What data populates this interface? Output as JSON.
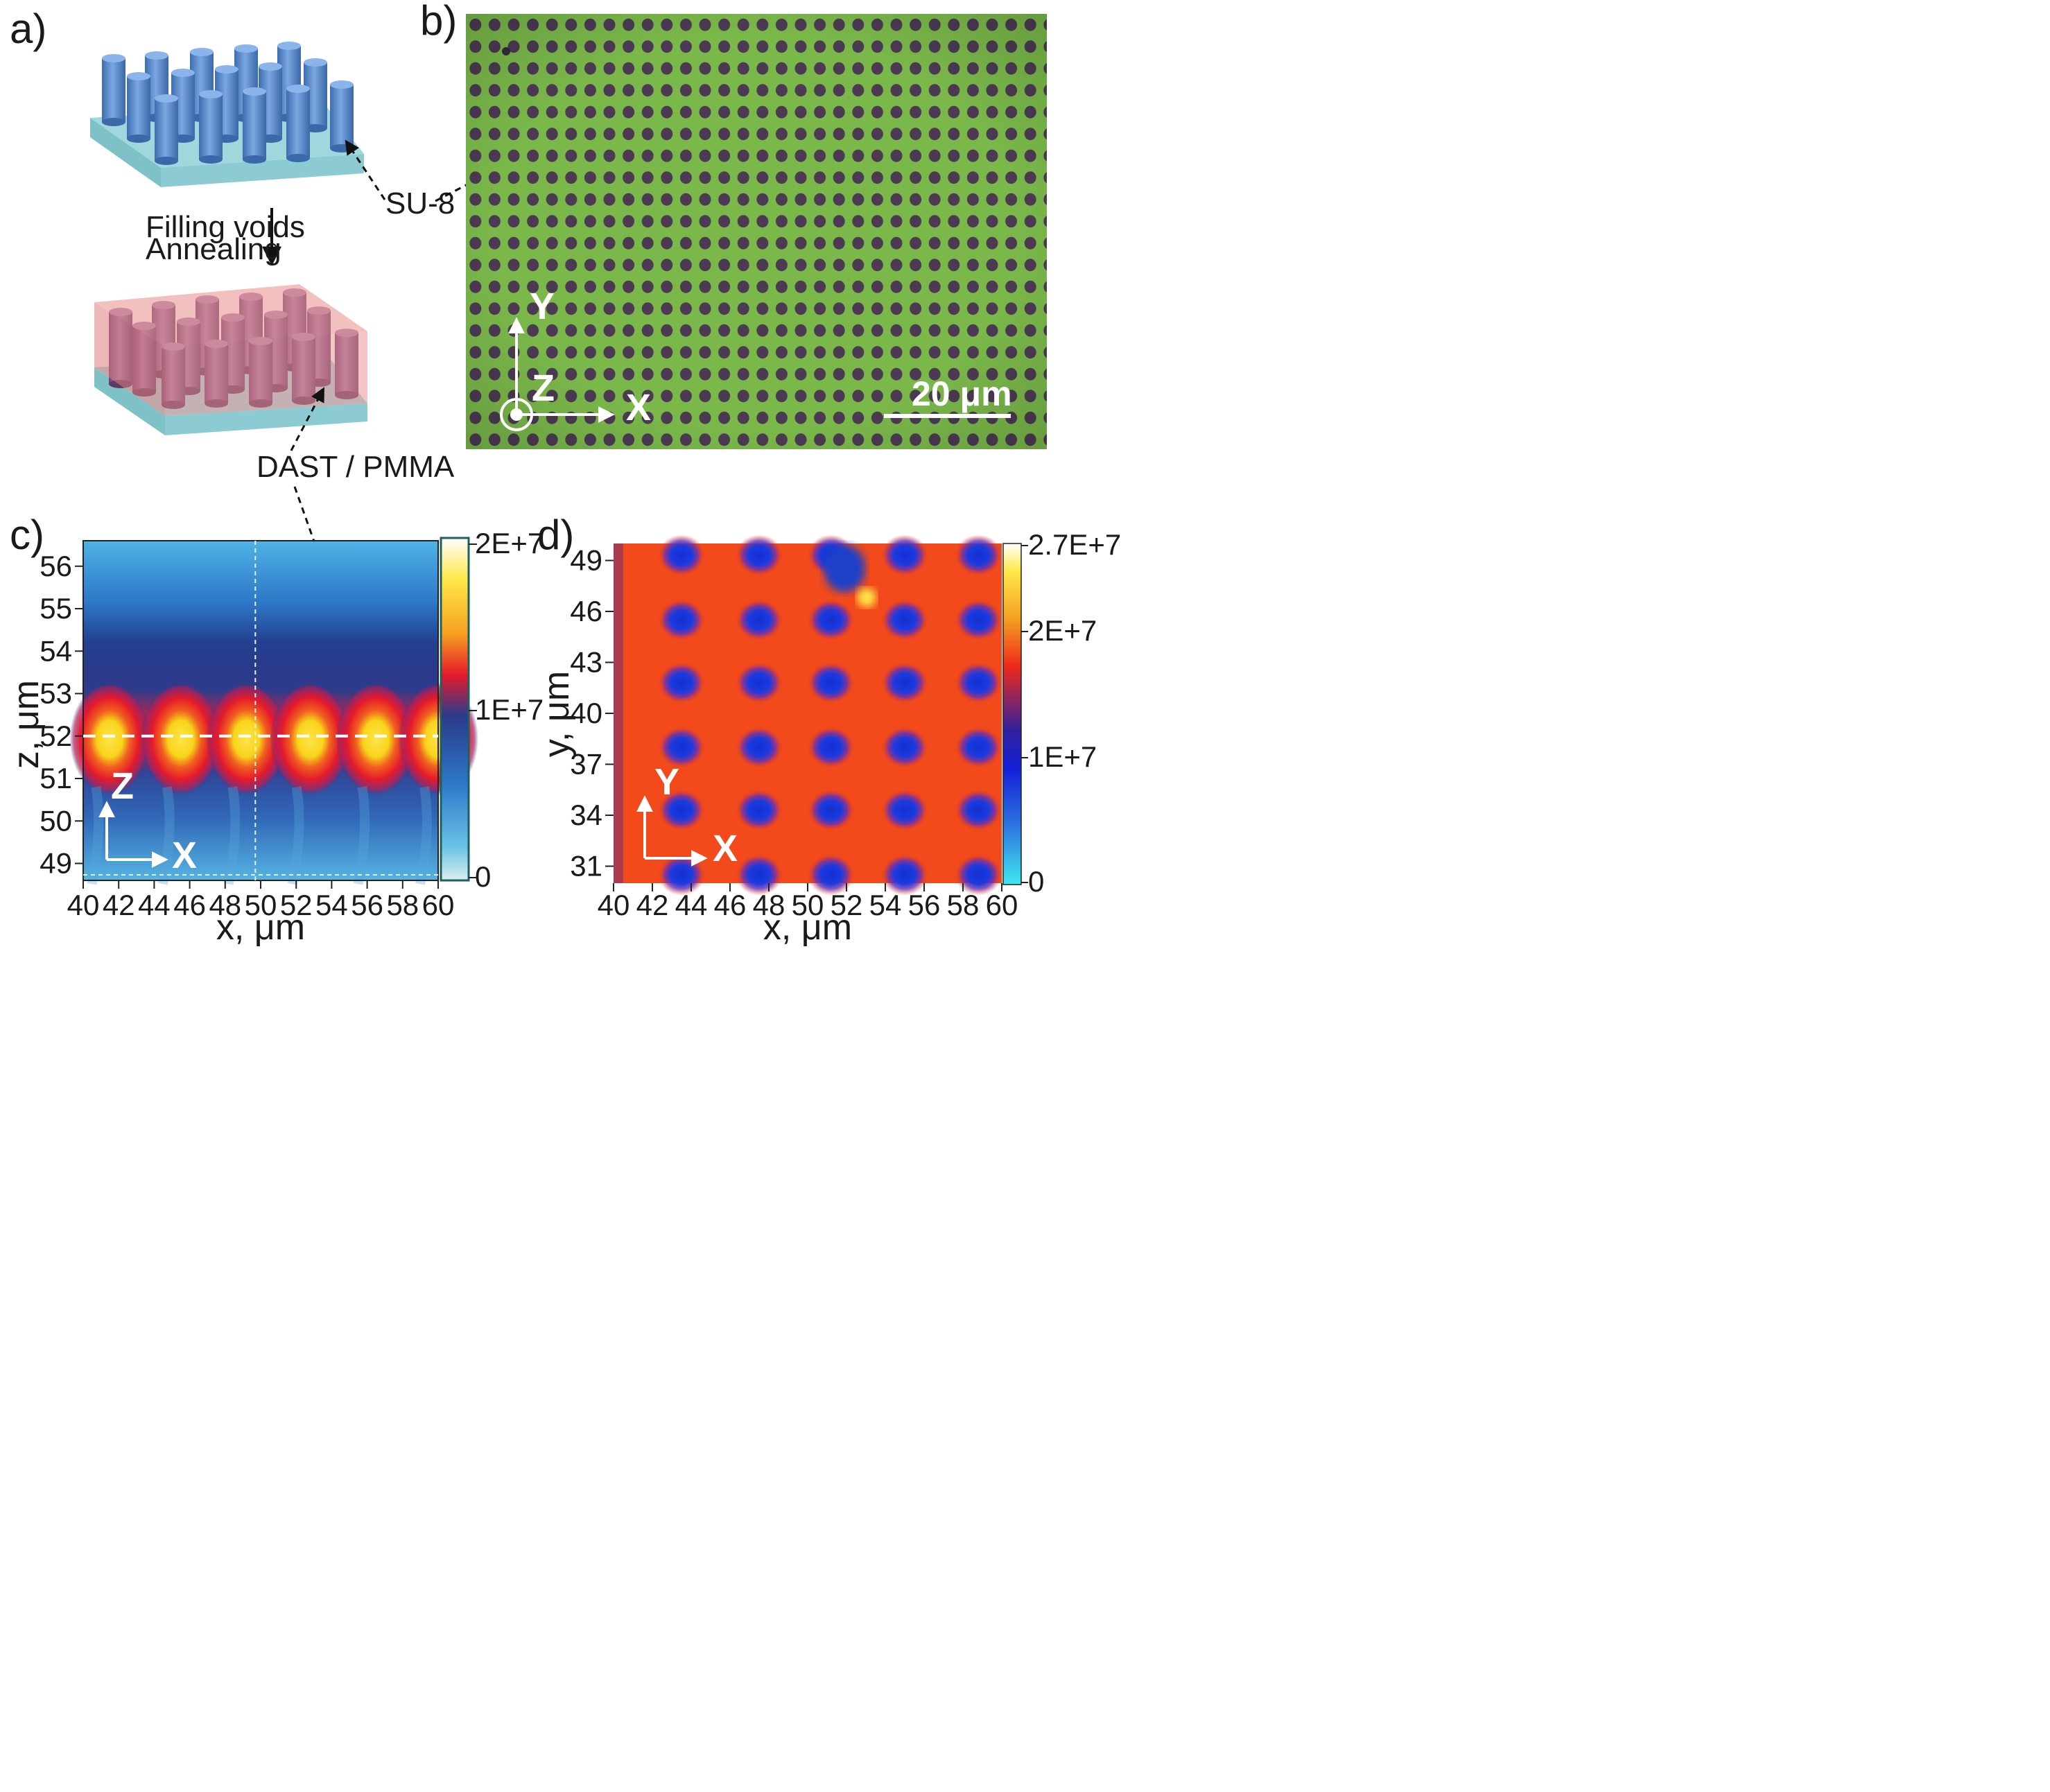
{
  "panels": {
    "a": {
      "label": "a)",
      "process_step": [
        "Filling voids",
        "Annealing"
      ],
      "material_pillars": "SU-8",
      "material_fill": "DAST / PMMA",
      "colors": {
        "pillar": "#5b8fd0",
        "substrate": "#9fd7dc",
        "fill": "#e98c8c"
      }
    },
    "b": {
      "label": "b)",
      "scale_bar": "20 μm",
      "axes": {
        "y": "Y",
        "z": "Z",
        "x": "X"
      },
      "colors": {
        "background": "#7ab84a",
        "dot": "#4b3a52"
      }
    },
    "c": {
      "label": "c)",
      "xlabel": "x, μm",
      "ylabel": "z, μm",
      "axes": {
        "z": "Z",
        "x": "X"
      },
      "colorbar_ticks": [
        "2E+7",
        "1E+7",
        "0"
      ]
    },
    "d": {
      "label": "d)",
      "xlabel": "x, μm",
      "ylabel": "y, μm",
      "axes": {
        "y": "Y",
        "x": "X"
      },
      "colorbar_ticks": [
        "2.7E+7",
        "2E+7",
        "1E+7",
        "0"
      ]
    }
  },
  "chart_data": [
    {
      "type": "heatmap",
      "title": "c)",
      "xlabel": "x, μm",
      "ylabel": "z, μm",
      "xlim": [
        40,
        60
      ],
      "ylim": [
        48.6,
        56.6
      ],
      "x_ticks": [
        "40",
        "42",
        "44",
        "46",
        "48",
        "50",
        "52",
        "54",
        "56",
        "58",
        "60"
      ],
      "y_ticks": [
        "49",
        "50",
        "51",
        "52",
        "53",
        "54",
        "55",
        "56"
      ],
      "colorbar": {
        "min": 0,
        "max": 20000000,
        "ticks": [
          "2E+7",
          "1E+7",
          "0"
        ]
      },
      "bright_spots_x": [
        41.5,
        45.5,
        49.2,
        52.8,
        56.5,
        60.0
      ],
      "bright_spot_z": 52,
      "guide_lines": {
        "horizontal_z": 52,
        "vertical_x": 49.7
      }
    },
    {
      "type": "heatmap",
      "title": "d)",
      "xlabel": "x, μm",
      "ylabel": "y, μm",
      "xlim": [
        40,
        60
      ],
      "ylim": [
        30,
        50
      ],
      "x_ticks": [
        "40",
        "42",
        "44",
        "46",
        "48",
        "50",
        "52",
        "54",
        "56",
        "58",
        "60"
      ],
      "y_ticks": [
        "31",
        "34",
        "37",
        "40",
        "43",
        "46",
        "49"
      ],
      "colorbar": {
        "min": 0,
        "max": 27000000,
        "ticks": [
          "2.7E+7",
          "2E+7",
          "1E+7",
          "0"
        ]
      },
      "low_spot_columns_x": [
        43.5,
        47.5,
        51.2,
        55.0,
        58.8
      ],
      "low_spot_rows_y": [
        49.3,
        45.5,
        41.8,
        38.0,
        34.3,
        30.5
      ]
    }
  ]
}
